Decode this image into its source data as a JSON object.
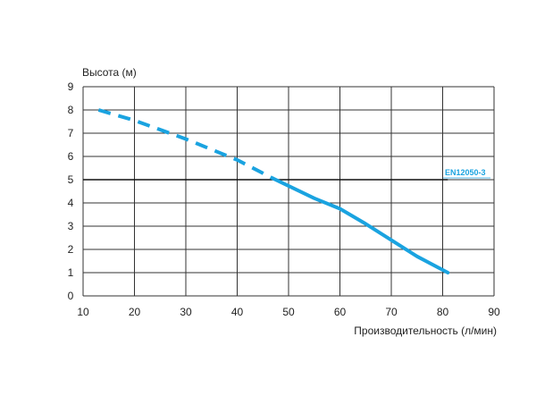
{
  "chart_data": {
    "type": "line",
    "ylabel": "Высота (м)",
    "xlabel": "Производительность (л/мин)",
    "xlim": [
      10,
      90
    ],
    "ylim": [
      0,
      9
    ],
    "x_ticks": [
      "10",
      "20",
      "30",
      "40",
      "50",
      "60",
      "70",
      "80",
      "90"
    ],
    "y_ticks": [
      "0",
      "1",
      "2",
      "3",
      "4",
      "5",
      "6",
      "7",
      "8",
      "9"
    ],
    "grid": true,
    "series": [
      {
        "style": "dashed",
        "color": "#1aa3e0",
        "x": [
          13,
          20,
          30,
          40,
          47
        ],
        "y": [
          8,
          7.55,
          6.75,
          5.85,
          5.05
        ]
      },
      {
        "style": "solid",
        "color": "#1aa3e0",
        "x": [
          47,
          55,
          60,
          65,
          70,
          75,
          81
        ],
        "y": [
          5.05,
          4.2,
          3.75,
          3.1,
          2.4,
          1.7,
          1.0
        ]
      }
    ],
    "reference_line": {
      "y": 5,
      "x_range": [
        10,
        81
      ],
      "color": "#111111",
      "label": "EN12050-3"
    }
  }
}
